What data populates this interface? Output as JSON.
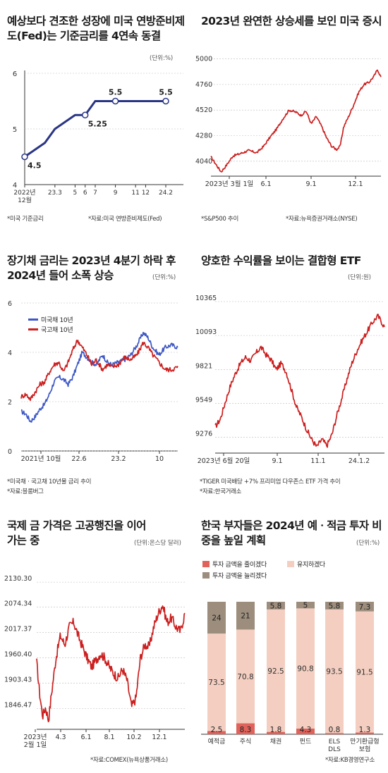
{
  "panels": {
    "fed": {
      "title": "예상보다 견조한 성장에 미국 연방준비제도(Fed)는 기준금리를 4연속 동결",
      "unit": "(단위:%)",
      "note_left": "*미국 기준금리",
      "note_right": "*자료:미국 연방준비제도(Fed)"
    },
    "sp500": {
      "title": "2023년 완연한 상승세를 보인 미국 증시",
      "note_left": "*S&P500 추이",
      "note_right": "*자료:뉴욕증권거래소(NYSE)"
    },
    "bonds": {
      "title": "장기채 금리는 2023년 4분기 하락 후 2024년 들어 소폭 상승",
      "unit": "(단위:%)",
      "note1": "*미국채ㆍ국고채 10년물 금리 추이",
      "note2": "*자료:블룸버그"
    },
    "etf": {
      "title": "양호한 수익률을 보이는 결합형 ETF",
      "unit": "(단위:원)",
      "note1": "*TIGER 미국배당 +7% 프리미엄 다우존스 ETF 가격 추이",
      "note2": "*자료:한국거래소"
    },
    "gold": {
      "title": "국제 금 가격은 고공행진을 이어가는 중",
      "unit": "(단위:온스당 달러)",
      "note_right": "*자료:COMEX(뉴욕상품거래소)"
    },
    "survey": {
      "title": "한국 부자들은 2024년 예ㆍ적금 투자 비중을 높일 계획",
      "unit": "(단위:%)",
      "note_right": "*자료:KB경영연구소"
    }
  },
  "chart_data": [
    {
      "id": "fed",
      "type": "line",
      "x_tick_labels": [
        "2022년\n12월",
        "23.3",
        "5",
        "6",
        "7",
        "9",
        "11",
        "12",
        "24.2"
      ],
      "y_ticks": [
        "4",
        "5",
        "6"
      ],
      "ylim": [
        4,
        6
      ],
      "points": [
        {
          "x": "2022.12",
          "y": 4.5,
          "label": "4.5",
          "marker": true
        },
        {
          "x": "23.2",
          "y": 4.75
        },
        {
          "x": "23.3",
          "y": 5.0
        },
        {
          "x": "5",
          "y": 5.25
        },
        {
          "x": "6",
          "y": 5.25,
          "label": "5.25",
          "marker": true
        },
        {
          "x": "7",
          "y": 5.5
        },
        {
          "x": "9",
          "y": 5.5,
          "label": "5.5",
          "marker": true
        },
        {
          "x": "24.2",
          "y": 5.5,
          "label": "5.5",
          "marker": true
        }
      ],
      "color": "#2a3585"
    },
    {
      "id": "sp500",
      "type": "line",
      "x_tick_labels": [
        "2023년 3월 1일",
        "6.1",
        "9.1",
        "12.1"
      ],
      "y_ticks": [
        "4040",
        "4280",
        "4520",
        "4760",
        "5000"
      ],
      "ylim": [
        3900,
        5050
      ],
      "series_anchors": [
        {
          "x": 0,
          "y": 4080
        },
        {
          "x": 3,
          "y": 4010
        },
        {
          "x": 6,
          "y": 3940
        },
        {
          "x": 9,
          "y": 4000
        },
        {
          "x": 13,
          "y": 4090
        },
        {
          "x": 17,
          "y": 4110
        },
        {
          "x": 22,
          "y": 4140
        },
        {
          "x": 27,
          "y": 4120
        },
        {
          "x": 31,
          "y": 4180
        },
        {
          "x": 35,
          "y": 4270
        },
        {
          "x": 39,
          "y": 4350
        },
        {
          "x": 42,
          "y": 4430
        },
        {
          "x": 46,
          "y": 4520
        },
        {
          "x": 50,
          "y": 4500
        },
        {
          "x": 53,
          "y": 4470
        },
        {
          "x": 56,
          "y": 4510
        },
        {
          "x": 59,
          "y": 4390
        },
        {
          "x": 62,
          "y": 4460
        },
        {
          "x": 65,
          "y": 4370
        },
        {
          "x": 68,
          "y": 4260
        },
        {
          "x": 71,
          "y": 4180
        },
        {
          "x": 74,
          "y": 4150
        },
        {
          "x": 76,
          "y": 4180
        },
        {
          "x": 78,
          "y": 4360
        },
        {
          "x": 81,
          "y": 4460
        },
        {
          "x": 84,
          "y": 4570
        },
        {
          "x": 87,
          "y": 4690
        },
        {
          "x": 90,
          "y": 4760
        },
        {
          "x": 93,
          "y": 4780
        },
        {
          "x": 96,
          "y": 4840
        },
        {
          "x": 98,
          "y": 4900
        },
        {
          "x": 100,
          "y": 4830
        }
      ],
      "color": "#cc1f1f"
    },
    {
      "id": "bonds",
      "type": "line",
      "x_tick_labels": [
        "2021년 10월",
        "22.6",
        "23.2",
        "10"
      ],
      "y_ticks": [
        "0",
        "2",
        "4",
        "6"
      ],
      "ylim": [
        0,
        6
      ],
      "series": [
        {
          "name": "미국채 10년",
          "color": "#3d57c5",
          "anchors": [
            {
              "x": 0,
              "y": 1.6
            },
            {
              "x": 3,
              "y": 1.5
            },
            {
              "x": 6,
              "y": 1.2
            },
            {
              "x": 9,
              "y": 1.4
            },
            {
              "x": 12,
              "y": 1.7
            },
            {
              "x": 15,
              "y": 1.9
            },
            {
              "x": 18,
              "y": 2.3
            },
            {
              "x": 21,
              "y": 2.8
            },
            {
              "x": 24,
              "y": 3.0
            },
            {
              "x": 27,
              "y": 2.9
            },
            {
              "x": 30,
              "y": 2.7
            },
            {
              "x": 33,
              "y": 3.0
            },
            {
              "x": 36,
              "y": 3.5
            },
            {
              "x": 39,
              "y": 4.0
            },
            {
              "x": 42,
              "y": 3.8
            },
            {
              "x": 45,
              "y": 3.6
            },
            {
              "x": 48,
              "y": 3.5
            },
            {
              "x": 52,
              "y": 3.9
            },
            {
              "x": 55,
              "y": 3.6
            },
            {
              "x": 58,
              "y": 3.5
            },
            {
              "x": 62,
              "y": 3.6
            },
            {
              "x": 66,
              "y": 3.7
            },
            {
              "x": 70,
              "y": 3.9
            },
            {
              "x": 74,
              "y": 4.3
            },
            {
              "x": 78,
              "y": 4.8
            },
            {
              "x": 81,
              "y": 4.6
            },
            {
              "x": 84,
              "y": 4.2
            },
            {
              "x": 88,
              "y": 3.9
            },
            {
              "x": 92,
              "y": 4.2
            },
            {
              "x": 96,
              "y": 4.3
            },
            {
              "x": 100,
              "y": 4.2
            }
          ]
        },
        {
          "name": "국고채 10년",
          "color": "#cc1f1f",
          "anchors": [
            {
              "x": 0,
              "y": 2.2
            },
            {
              "x": 3,
              "y": 2.3
            },
            {
              "x": 6,
              "y": 2.1
            },
            {
              "x": 9,
              "y": 2.4
            },
            {
              "x": 12,
              "y": 2.7
            },
            {
              "x": 15,
              "y": 2.8
            },
            {
              "x": 18,
              "y": 3.2
            },
            {
              "x": 21,
              "y": 3.5
            },
            {
              "x": 24,
              "y": 3.6
            },
            {
              "x": 27,
              "y": 3.2
            },
            {
              "x": 30,
              "y": 3.6
            },
            {
              "x": 33,
              "y": 4.1
            },
            {
              "x": 36,
              "y": 4.5
            },
            {
              "x": 39,
              "y": 4.2
            },
            {
              "x": 42,
              "y": 3.9
            },
            {
              "x": 45,
              "y": 3.5
            },
            {
              "x": 48,
              "y": 3.7
            },
            {
              "x": 52,
              "y": 3.3
            },
            {
              "x": 55,
              "y": 3.5
            },
            {
              "x": 58,
              "y": 3.4
            },
            {
              "x": 62,
              "y": 3.5
            },
            {
              "x": 66,
              "y": 3.8
            },
            {
              "x": 70,
              "y": 3.7
            },
            {
              "x": 74,
              "y": 3.9
            },
            {
              "x": 78,
              "y": 4.4
            },
            {
              "x": 81,
              "y": 4.2
            },
            {
              "x": 84,
              "y": 3.9
            },
            {
              "x": 88,
              "y": 3.6
            },
            {
              "x": 92,
              "y": 3.3
            },
            {
              "x": 96,
              "y": 3.3
            },
            {
              "x": 100,
              "y": 3.4
            }
          ]
        }
      ]
    },
    {
      "id": "etf",
      "type": "line",
      "x_tick_labels": [
        "2023년 6월 20일",
        "9.1",
        "11.1",
        "24.1.2"
      ],
      "y_ticks": [
        "9276",
        "9549",
        "9821",
        "10093",
        "10365"
      ],
      "ylim": [
        9150,
        10365
      ],
      "series_anchors": [
        {
          "x": 0,
          "y": 9360
        },
        {
          "x": 3,
          "y": 9420
        },
        {
          "x": 6,
          "y": 9560
        },
        {
          "x": 9,
          "y": 9690
        },
        {
          "x": 12,
          "y": 9790
        },
        {
          "x": 15,
          "y": 9870
        },
        {
          "x": 18,
          "y": 9920
        },
        {
          "x": 21,
          "y": 9890
        },
        {
          "x": 24,
          "y": 9950
        },
        {
          "x": 27,
          "y": 10000
        },
        {
          "x": 30,
          "y": 9940
        },
        {
          "x": 33,
          "y": 9900
        },
        {
          "x": 36,
          "y": 9820
        },
        {
          "x": 39,
          "y": 9870
        },
        {
          "x": 42,
          "y": 9800
        },
        {
          "x": 45,
          "y": 9660
        },
        {
          "x": 48,
          "y": 9520
        },
        {
          "x": 51,
          "y": 9440
        },
        {
          "x": 54,
          "y": 9340
        },
        {
          "x": 57,
          "y": 9260
        },
        {
          "x": 60,
          "y": 9200
        },
        {
          "x": 63,
          "y": 9260
        },
        {
          "x": 66,
          "y": 9210
        },
        {
          "x": 69,
          "y": 9300
        },
        {
          "x": 72,
          "y": 9460
        },
        {
          "x": 75,
          "y": 9600
        },
        {
          "x": 78,
          "y": 9750
        },
        {
          "x": 81,
          "y": 9880
        },
        {
          "x": 84,
          "y": 9980
        },
        {
          "x": 87,
          "y": 10060
        },
        {
          "x": 90,
          "y": 10130
        },
        {
          "x": 93,
          "y": 10200
        },
        {
          "x": 96,
          "y": 10250
        },
        {
          "x": 98,
          "y": 10210
        },
        {
          "x": 100,
          "y": 10160
        }
      ],
      "color": "#cc1f1f"
    },
    {
      "id": "gold",
      "type": "line",
      "x_tick_labels": [
        "2023년\n2월 1일",
        "4.3",
        "6.1",
        "8.1",
        "10.2",
        "12.1"
      ],
      "y_ticks": [
        "1846.47",
        "1903.43",
        "1960.40",
        "2017.37",
        "2074.34",
        "2130.30"
      ],
      "ylim": [
        1800,
        2140
      ],
      "series_anchors": [
        {
          "x": 0,
          "y": 1950
        },
        {
          "x": 2,
          "y": 1880
        },
        {
          "x": 4,
          "y": 1830
        },
        {
          "x": 6,
          "y": 1850
        },
        {
          "x": 8,
          "y": 1820
        },
        {
          "x": 10,
          "y": 1880
        },
        {
          "x": 13,
          "y": 1960
        },
        {
          "x": 16,
          "y": 2010
        },
        {
          "x": 19,
          "y": 1990
        },
        {
          "x": 22,
          "y": 2030
        },
        {
          "x": 25,
          "y": 2040
        },
        {
          "x": 28,
          "y": 2010
        },
        {
          "x": 31,
          "y": 1985
        },
        {
          "x": 34,
          "y": 1960
        },
        {
          "x": 37,
          "y": 1940
        },
        {
          "x": 40,
          "y": 1955
        },
        {
          "x": 43,
          "y": 1970
        },
        {
          "x": 46,
          "y": 1960
        },
        {
          "x": 49,
          "y": 1940
        },
        {
          "x": 52,
          "y": 1925
        },
        {
          "x": 55,
          "y": 1915
        },
        {
          "x": 58,
          "y": 1935
        },
        {
          "x": 61,
          "y": 1910
        },
        {
          "x": 64,
          "y": 1850
        },
        {
          "x": 67,
          "y": 1870
        },
        {
          "x": 70,
          "y": 1960
        },
        {
          "x": 73,
          "y": 1990
        },
        {
          "x": 76,
          "y": 1985
        },
        {
          "x": 79,
          "y": 2030
        },
        {
          "x": 82,
          "y": 2060
        },
        {
          "x": 85,
          "y": 2080
        },
        {
          "x": 88,
          "y": 2040
        },
        {
          "x": 91,
          "y": 2050
        },
        {
          "x": 94,
          "y": 2030
        },
        {
          "x": 97,
          "y": 2020
        },
        {
          "x": 100,
          "y": 2060
        }
      ],
      "color": "#cc1f1f"
    },
    {
      "id": "survey",
      "type": "bar",
      "stacked": true,
      "categories": [
        "예적금",
        "주식",
        "채권",
        "펀드",
        "ELS\nDLS",
        "만기환급형\n보험"
      ],
      "series": [
        {
          "name": "투자 금액을 줄이겠다",
          "color": "#e0625b",
          "values": [
            2.5,
            8.3,
            1.8,
            4.3,
            0.8,
            1.3
          ]
        },
        {
          "name": "유지하겠다",
          "color": "#f4cfc1",
          "values": [
            73.5,
            70.8,
            92.5,
            90.8,
            93.5,
            91.5
          ]
        },
        {
          "name": "투자 금액을 늘리겠다",
          "color": "#9c8d7d",
          "values": [
            24,
            21,
            5.8,
            5,
            5.8,
            7.3
          ]
        }
      ],
      "labels": {
        "decrease": [
          "2.5",
          "8.3",
          "1.8",
          "4.3",
          "0.8",
          "1.3"
        ],
        "keep": [
          "73.5",
          "70.8",
          "92.5",
          "90.8",
          "93.5",
          "91.5"
        ],
        "increase": [
          "24",
          "21",
          "5.8",
          "5",
          "5.8",
          "7.3"
        ]
      }
    }
  ]
}
